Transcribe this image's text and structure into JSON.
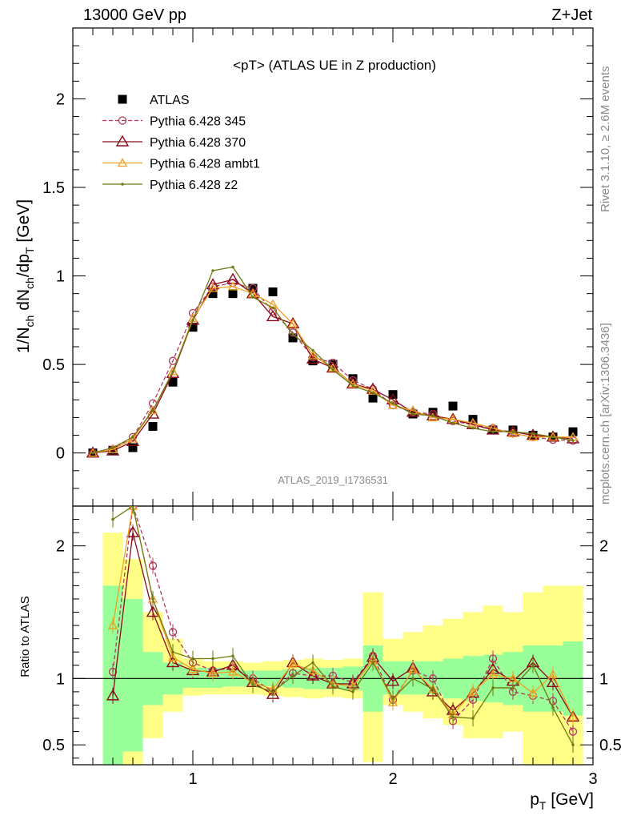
{
  "header": {
    "left": "13000 GeV pp",
    "right": "Z+Jet"
  },
  "plot_title": "<pT> (ATLAS UE in Z production)",
  "side_text_top": "Rivet 3.1.10, ≥ 2.6M events",
  "side_text_bottom": "mcplots.cern.ch [arXiv:1306.3436]",
  "watermark": "ATLAS_2019_I1736531",
  "colors": {
    "data": "#000000",
    "p345": "#b03a5a",
    "p370": "#8b0a1a",
    "ambt1": "#f0a020",
    "z2": "#6e7a10",
    "band_inner": "#99ff99",
    "band_outer": "#ffff88"
  },
  "chart_data": [
    {
      "type": "scatter",
      "ylabel": "1/N_ch dN_ch/dp_T [GeV]",
      "xlim": [
        0.4,
        3.0
      ],
      "ylim": [
        -0.3,
        2.4
      ],
      "yticks": [
        "0",
        "0.5",
        "1",
        "1.5",
        "2"
      ],
      "x": [
        0.5,
        0.6,
        0.7,
        0.8,
        0.9,
        1.0,
        1.1,
        1.2,
        1.3,
        1.4,
        1.5,
        1.6,
        1.7,
        1.8,
        1.9,
        2.0,
        2.1,
        2.2,
        2.3,
        2.4,
        2.5,
        2.6,
        2.7,
        2.8,
        2.9
      ],
      "series": [
        {
          "name": "ATLAS",
          "marker": "square",
          "values": [
            0.0,
            0.015,
            0.03,
            0.15,
            0.4,
            0.71,
            0.9,
            0.9,
            0.93,
            0.91,
            0.65,
            0.52,
            0.5,
            0.42,
            0.31,
            0.33,
            0.22,
            0.23,
            0.265,
            0.19,
            0.13,
            0.13,
            0.1,
            0.09,
            0.12
          ]
        },
        {
          "name": "Pythia 6.428 345",
          "marker": "circle",
          "dashed": true,
          "values": [
            0.0,
            0.02,
            0.09,
            0.28,
            0.52,
            0.79,
            0.94,
            0.96,
            0.93,
            0.8,
            0.68,
            0.54,
            0.51,
            0.41,
            0.36,
            0.27,
            0.23,
            0.22,
            0.18,
            0.16,
            0.14,
            0.11,
            0.09,
            0.075,
            0.07
          ]
        },
        {
          "name": "Pythia 6.428 370",
          "marker": "triangle",
          "values": [
            0.0,
            0.012,
            0.065,
            0.22,
            0.45,
            0.75,
            0.95,
            0.98,
            0.9,
            0.77,
            0.73,
            0.53,
            0.48,
            0.39,
            0.36,
            0.3,
            0.23,
            0.21,
            0.19,
            0.16,
            0.13,
            0.12,
            0.1,
            0.09,
            0.08
          ]
        },
        {
          "name": "Pythia 6.428 ambt1",
          "marker": "small-triangle",
          "values": [
            0.0,
            0.02,
            0.08,
            0.24,
            0.46,
            0.76,
            0.93,
            0.94,
            0.9,
            0.84,
            0.73,
            0.55,
            0.48,
            0.39,
            0.35,
            0.27,
            0.24,
            0.2,
            0.19,
            0.17,
            0.14,
            0.11,
            0.09,
            0.09,
            0.09
          ]
        },
        {
          "name": "Pythia 6.428 z2",
          "marker": "dot",
          "values": [
            0.0,
            0.03,
            0.09,
            0.24,
            0.46,
            0.75,
            1.03,
            1.05,
            0.88,
            0.82,
            0.67,
            0.58,
            0.47,
            0.38,
            0.34,
            0.28,
            0.22,
            0.21,
            0.17,
            0.14,
            0.12,
            0.12,
            0.11,
            0.09,
            0.07
          ]
        }
      ]
    },
    {
      "type": "line",
      "xlabel": "p_T [GeV]",
      "ylabel": "Ratio to ATLAS",
      "xlim": [
        0.4,
        3.0
      ],
      "ylim": [
        0.35,
        2.3
      ],
      "xticks": [
        "1",
        "2",
        "3"
      ],
      "yticks": [
        "0.5",
        "1",
        "2"
      ],
      "x": [
        0.6,
        0.7,
        0.8,
        0.9,
        1.0,
        1.1,
        1.2,
        1.3,
        1.4,
        1.5,
        1.6,
        1.7,
        1.8,
        1.9,
        2.0,
        2.1,
        2.2,
        2.3,
        2.4,
        2.5,
        2.6,
        2.7,
        2.8,
        2.9
      ],
      "band_inner": [
        [
          0.35,
          1.7
        ],
        [
          0.45,
          1.6
        ],
        [
          0.8,
          1.2
        ],
        [
          0.88,
          1.12
        ],
        [
          0.93,
          1.08
        ],
        [
          0.93,
          1.08
        ],
        [
          0.94,
          1.07
        ],
        [
          0.94,
          1.06
        ],
        [
          0.94,
          1.06
        ],
        [
          0.93,
          1.07
        ],
        [
          0.92,
          1.08
        ],
        [
          0.92,
          1.08
        ],
        [
          0.91,
          1.09
        ],
        [
          0.75,
          1.25
        ],
        [
          0.88,
          1.13
        ],
        [
          0.88,
          1.13
        ],
        [
          0.88,
          1.13
        ],
        [
          0.85,
          1.15
        ],
        [
          0.83,
          1.17
        ],
        [
          0.82,
          1.18
        ],
        [
          0.8,
          1.2
        ],
        [
          0.75,
          1.25
        ],
        [
          0.75,
          1.25
        ],
        [
          0.72,
          1.28
        ]
      ],
      "band_outer": [
        [
          0.35,
          2.1
        ],
        [
          0.35,
          1.9
        ],
        [
          0.55,
          1.5
        ],
        [
          0.75,
          1.3
        ],
        [
          0.87,
          1.15
        ],
        [
          0.88,
          1.13
        ],
        [
          0.88,
          1.13
        ],
        [
          0.88,
          1.12
        ],
        [
          0.87,
          1.13
        ],
        [
          0.86,
          1.14
        ],
        [
          0.85,
          1.15
        ],
        [
          0.86,
          1.14
        ],
        [
          0.85,
          1.15
        ],
        [
          0.37,
          1.65
        ],
        [
          0.8,
          1.3
        ],
        [
          0.75,
          1.35
        ],
        [
          0.7,
          1.4
        ],
        [
          0.65,
          1.45
        ],
        [
          0.55,
          1.5
        ],
        [
          0.55,
          1.55
        ],
        [
          0.6,
          1.5
        ],
        [
          0.35,
          1.65
        ],
        [
          0.35,
          1.7
        ],
        [
          0.35,
          1.7
        ]
      ],
      "series": [
        {
          "name": "Pythia 6.428 345",
          "values": [
            1.05,
            2.3,
            1.85,
            1.35,
            1.12,
            1.06,
            1.08,
            1.0,
            0.9,
            1.04,
            1.02,
            1.02,
            0.97,
            1.17,
            0.84,
            1.06,
            1.0,
            0.68,
            0.84,
            1.15,
            0.9,
            0.87,
            0.83,
            0.6
          ]
        },
        {
          "name": "Pythia 6.428 370",
          "values": [
            0.87,
            2.1,
            1.5,
            1.12,
            1.06,
            1.05,
            1.1,
            0.97,
            0.88,
            1.12,
            1.02,
            0.96,
            0.96,
            1.16,
            0.98,
            1.08,
            0.9,
            0.76,
            0.89,
            1.07,
            0.98,
            1.12,
            0.97,
            0.71
          ]
        },
        {
          "name": "Pythia 6.428 ambt1",
          "values": [
            1.4,
            2.3,
            1.6,
            1.16,
            1.07,
            1.04,
            1.05,
            0.97,
            0.92,
            1.11,
            1.06,
            0.96,
            0.94,
            1.14,
            0.82,
            1.07,
            0.92,
            0.73,
            0.9,
            1.03,
            1.0,
            0.89,
            1.03,
            0.71
          ]
        },
        {
          "name": "Pythia 6.428 z2",
          "values": [
            2.2,
            2.3,
            1.6,
            1.2,
            1.15,
            1.15,
            1.17,
            0.95,
            0.9,
            1.02,
            1.12,
            0.94,
            0.9,
            1.12,
            0.85,
            1.0,
            0.92,
            0.71,
            0.7,
            0.93,
            0.93,
            1.1,
            0.78,
            0.5
          ]
        }
      ]
    }
  ]
}
